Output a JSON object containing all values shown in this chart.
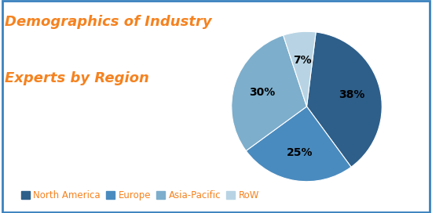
{
  "title_line1": "Demographics of Industry",
  "title_line2": "Experts by Region",
  "title_color": "#F5821F",
  "labels": [
    "North America",
    "Europe",
    "Asia-Pacific",
    "RoW"
  ],
  "values": [
    38,
    25,
    30,
    7
  ],
  "colors": [
    "#2E5F8A",
    "#4A8BBF",
    "#7DAECC",
    "#B8D4E4"
  ],
  "pct_labels": [
    "38%",
    "25%",
    "30%",
    "7%"
  ],
  "background_color": "#FFFFFF",
  "border_color": "#3A82BE",
  "pct_fontsize": 10,
  "title_fontsize": 13,
  "legend_fontsize": 8.5,
  "startangle": 83
}
